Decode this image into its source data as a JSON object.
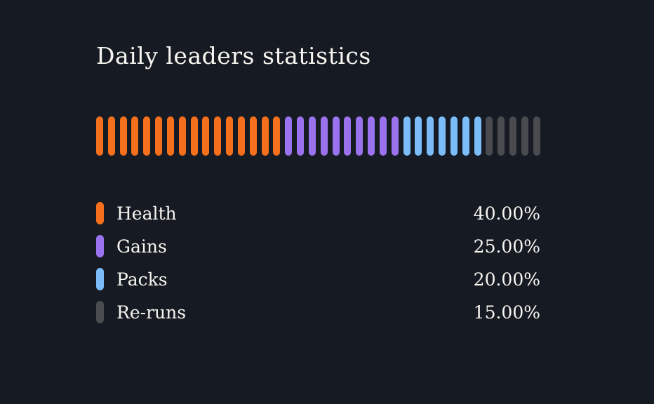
{
  "page": {
    "background": "#161b23",
    "text_color": "#f7f5f0"
  },
  "title": "Daily leaders statistics",
  "chart_data": {
    "type": "bar",
    "subtype": "segmented-progress-pills",
    "title": "Daily leaders statistics",
    "categories": [
      "Health",
      "Gains",
      "Packs",
      "Re-runs"
    ],
    "values": [
      40,
      25,
      20,
      15
    ],
    "value_labels": [
      "40.00%",
      "25.00%",
      "20.00%",
      "15.00%"
    ],
    "unit": "%",
    "xlabel": "",
    "ylabel": "",
    "legend_position": "bottom",
    "grid": false,
    "total_pills": 38,
    "segments": [
      {
        "name": "Health",
        "color": "#f5701d",
        "pill_count": 16
      },
      {
        "name": "Gains",
        "color": "#9b72ee",
        "pill_count": 10
      },
      {
        "name": "Packs",
        "color": "#7abdf8",
        "pill_count": 7
      },
      {
        "name": "Re-runs",
        "color": "#4a4b4e",
        "pill_count": 5
      }
    ]
  },
  "legend": {
    "items": [
      {
        "label": "Health",
        "value": "40.00%",
        "color": "#f5701d"
      },
      {
        "label": "Gains",
        "value": "25.00%",
        "color": "#9b72ee"
      },
      {
        "label": "Packs",
        "value": "20.00%",
        "color": "#7abdf8"
      },
      {
        "label": "Re-runs",
        "value": "15.00%",
        "color": "#4a4b4e"
      }
    ]
  }
}
